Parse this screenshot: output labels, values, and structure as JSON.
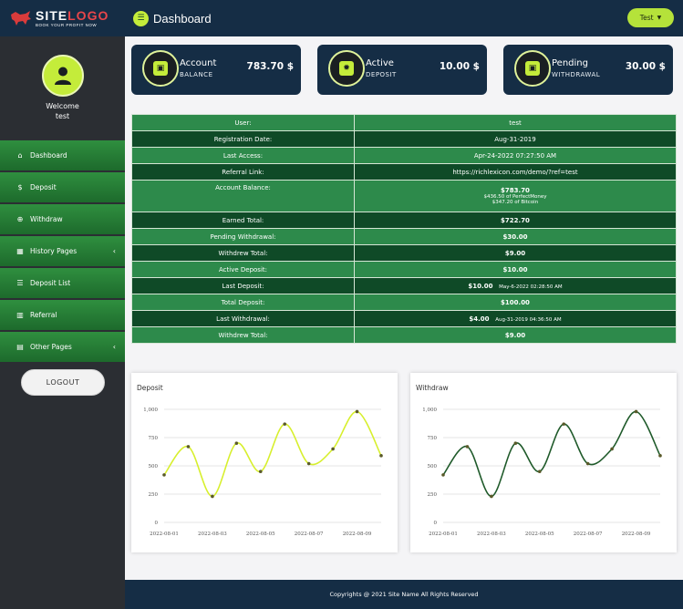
{
  "brand": {
    "logo_main_a": "SITE",
    "logo_main_b": "LOGO",
    "tagline": "BOOK YOUR PROFIT NOW"
  },
  "header": {
    "title": "Dashboard",
    "user_label": "Test"
  },
  "profile": {
    "welcome": "Welcome",
    "username": "test"
  },
  "sidebar": {
    "items": [
      {
        "label": "Dashboard",
        "icon": "home-icon",
        "glyph": "⌂",
        "chevron": false
      },
      {
        "label": "Deposit",
        "icon": "dollar-icon",
        "glyph": "$",
        "chevron": false
      },
      {
        "label": "Withdraw",
        "icon": "download-circle-icon",
        "glyph": "⊕",
        "chevron": false
      },
      {
        "label": "History Pages",
        "icon": "table-icon",
        "glyph": "▦",
        "chevron": true
      },
      {
        "label": "Deposit List",
        "icon": "list-icon",
        "glyph": "☰",
        "chevron": false
      },
      {
        "label": "Referral",
        "icon": "bar-chart-icon",
        "glyph": "▥",
        "chevron": false
      },
      {
        "label": "Other Pages",
        "icon": "file-icon",
        "glyph": "▤",
        "chevron": true
      }
    ],
    "logout": "LOGOUT"
  },
  "cards": [
    {
      "title": "Account",
      "sub": "BALANCE",
      "value": "783.70 $",
      "icon": "wallet-icon"
    },
    {
      "title": "Active",
      "sub": "DEPOSIT",
      "value": "10.00 $",
      "icon": "gear-icon"
    },
    {
      "title": "Pending",
      "sub": "WITHDRAWAL",
      "value": "30.00 $",
      "icon": "wallet-icon"
    }
  ],
  "info": {
    "user_label": "User:",
    "user": "test",
    "reg_label": "Registration Date:",
    "reg": "Aug-31-2019",
    "access_label": "Last Access:",
    "access": "Apr-24-2022 07:27:50 AM",
    "ref_label": "Referral Link:",
    "ref": "https://richlexicon.com/demo/?ref=test",
    "balance_label": "Account Balance:",
    "balance": "$783.70",
    "balance_pm": "$436.50 of PerfectMoney",
    "balance_btc": "$347.20 of Bitcoin",
    "earned_label": "Earned Total:",
    "earned": "$722.70",
    "pending_label": "Pending Withdrawal:",
    "pending": "$30.00",
    "withdrew_label": "Withdrew Total:",
    "withdrew": "$9.00",
    "active_label": "Active Deposit:",
    "active": "$10.00",
    "lastdep_label": "Last Deposit:",
    "lastdep": "$10.00",
    "lastdep_date": "May-6-2022 02:28:50 AM",
    "totaldep_label": "Total Deposit:",
    "totaldep": "$100.00",
    "lastwd_label": "Last Withdrawal:",
    "lastwd": "$4.00",
    "lastwd_date": "Aug-31-2019 04:36:50 AM",
    "withdrew2_label": "Withdrew Total:",
    "withdrew2": "$9.00"
  },
  "chart_data": [
    {
      "type": "line",
      "title": "Deposit",
      "x": [
        "2022-08-01",
        "2022-08-02",
        "2022-08-03",
        "2022-08-04",
        "2022-08-05",
        "2022-08-06",
        "2022-08-07",
        "2022-08-08",
        "2022-08-09",
        "2022-08-10"
      ],
      "values": [
        420,
        670,
        230,
        700,
        450,
        870,
        520,
        650,
        980,
        590
      ],
      "x_ticks": [
        "2022-08-01",
        "2022-08-03",
        "2022-08-05",
        "2022-08-07",
        "2022-08-09"
      ],
      "y_ticks": [
        "0",
        "250",
        "500",
        "750",
        "1,000"
      ],
      "ylim": [
        0,
        1000
      ],
      "grid": true,
      "color": "#d7ef2d"
    },
    {
      "type": "line",
      "title": "Withdraw",
      "x": [
        "2022-08-01",
        "2022-08-02",
        "2022-08-03",
        "2022-08-04",
        "2022-08-05",
        "2022-08-06",
        "2022-08-07",
        "2022-08-08",
        "2022-08-09",
        "2022-08-10"
      ],
      "values": [
        420,
        670,
        230,
        700,
        450,
        870,
        520,
        650,
        980,
        590
      ],
      "x_ticks": [
        "2022-08-01",
        "2022-08-03",
        "2022-08-05",
        "2022-08-07",
        "2022-08-09"
      ],
      "y_ticks": [
        "0",
        "250",
        "500",
        "750",
        "1,000"
      ],
      "ylim": [
        0,
        1000
      ],
      "grid": true,
      "color": "#1f5a2a"
    }
  ],
  "footer": {
    "text": "Copyrights @ 2021 Site Name All Rights Reserved"
  }
}
